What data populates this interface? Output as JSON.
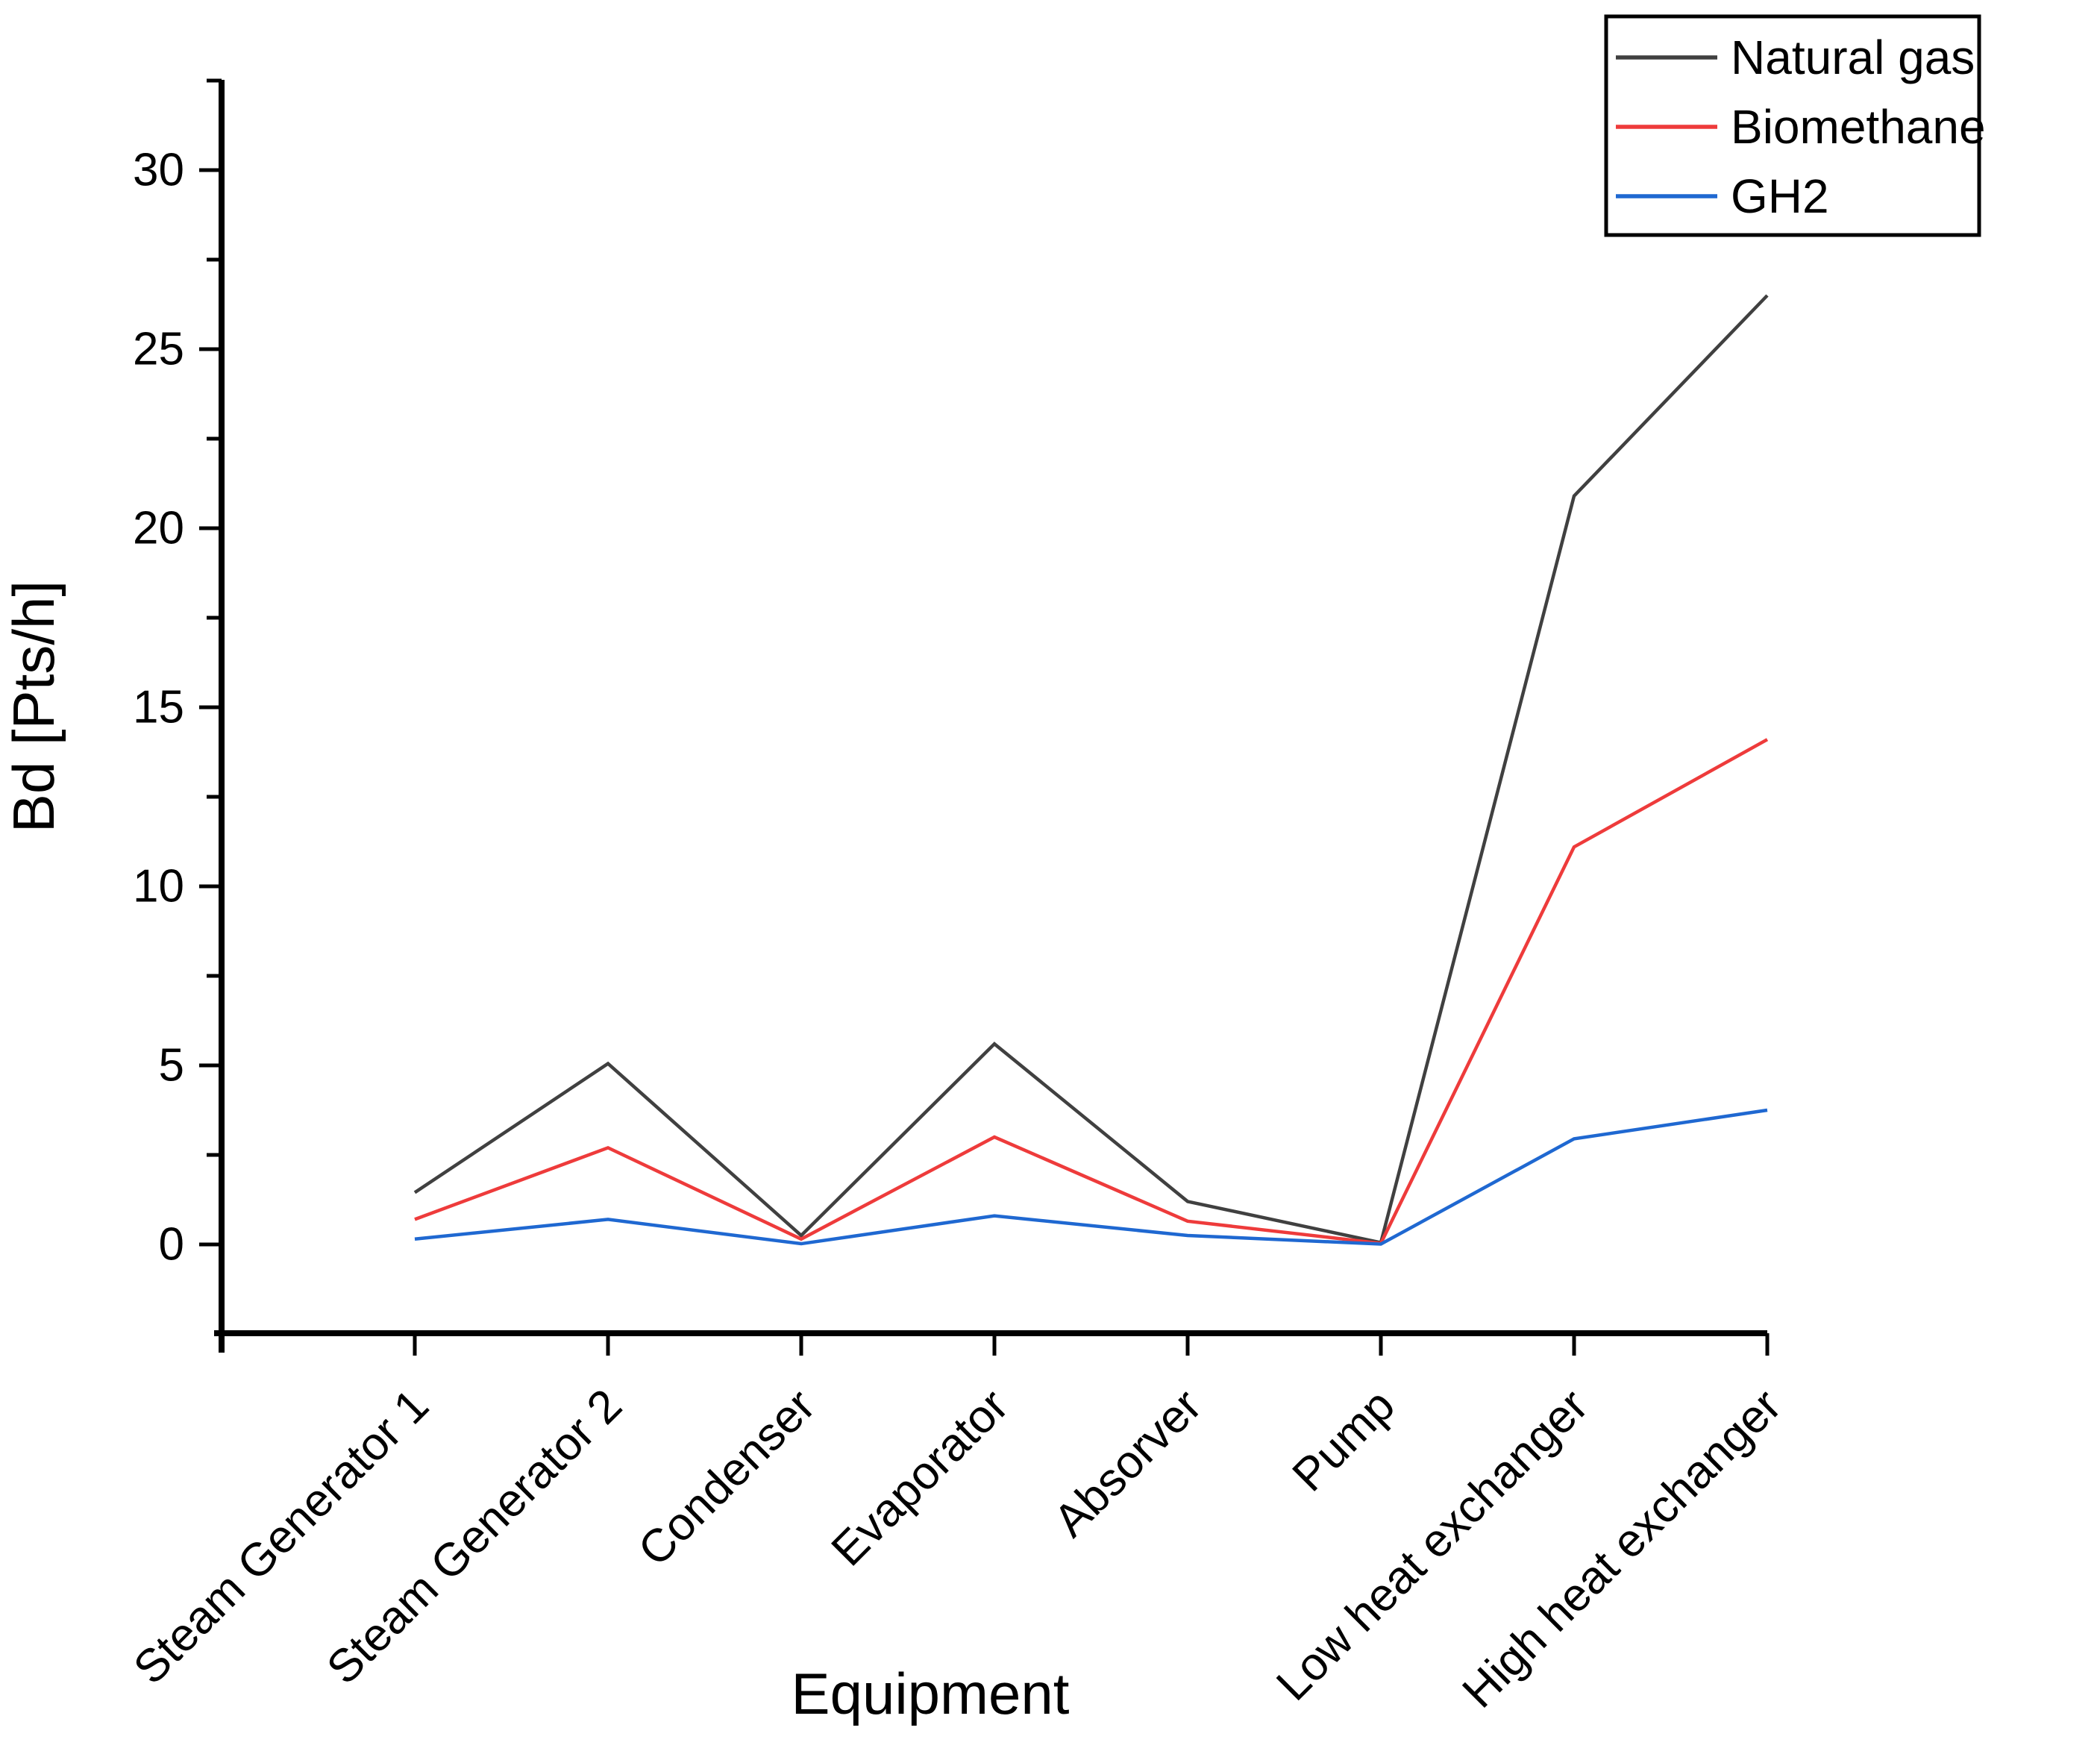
{
  "chart_data": {
    "type": "line",
    "categories": [
      "Steam Generator 1",
      "Steam Generator 2",
      "Condenser",
      "Evaporator",
      "Absorver",
      "Pump",
      "Low heat exchanger",
      "High heat exchanger"
    ],
    "series": [
      {
        "name": "Natural gas",
        "color": "#404040",
        "values": [
          1.45,
          5.05,
          0.25,
          5.6,
          1.2,
          0.05,
          20.9,
          26.5
        ]
      },
      {
        "name": "Biomethane",
        "color": "#ee3b3b",
        "values": [
          0.7,
          2.7,
          0.15,
          3.0,
          0.65,
          0.03,
          11.1,
          14.1
        ]
      },
      {
        "name": "GH2",
        "color": "#1f68d1",
        "values": [
          0.15,
          0.7,
          0.02,
          0.8,
          0.25,
          0.01,
          2.95,
          3.75
        ]
      }
    ],
    "title": "",
    "xlabel": "Equipment",
    "ylabel": "Bd [Pts/h]",
    "ylim": [
      -2.5,
      32.5
    ],
    "yticks_major": [
      0,
      5,
      10,
      15,
      20,
      25,
      30
    ],
    "yticks_minor": [
      2.5,
      7.5,
      12.5,
      17.5,
      22.5,
      27.5,
      32.5
    ],
    "grid": false,
    "legend_position": "top-right",
    "axis_color": "#000000",
    "x_label_rotation_deg": -45
  }
}
